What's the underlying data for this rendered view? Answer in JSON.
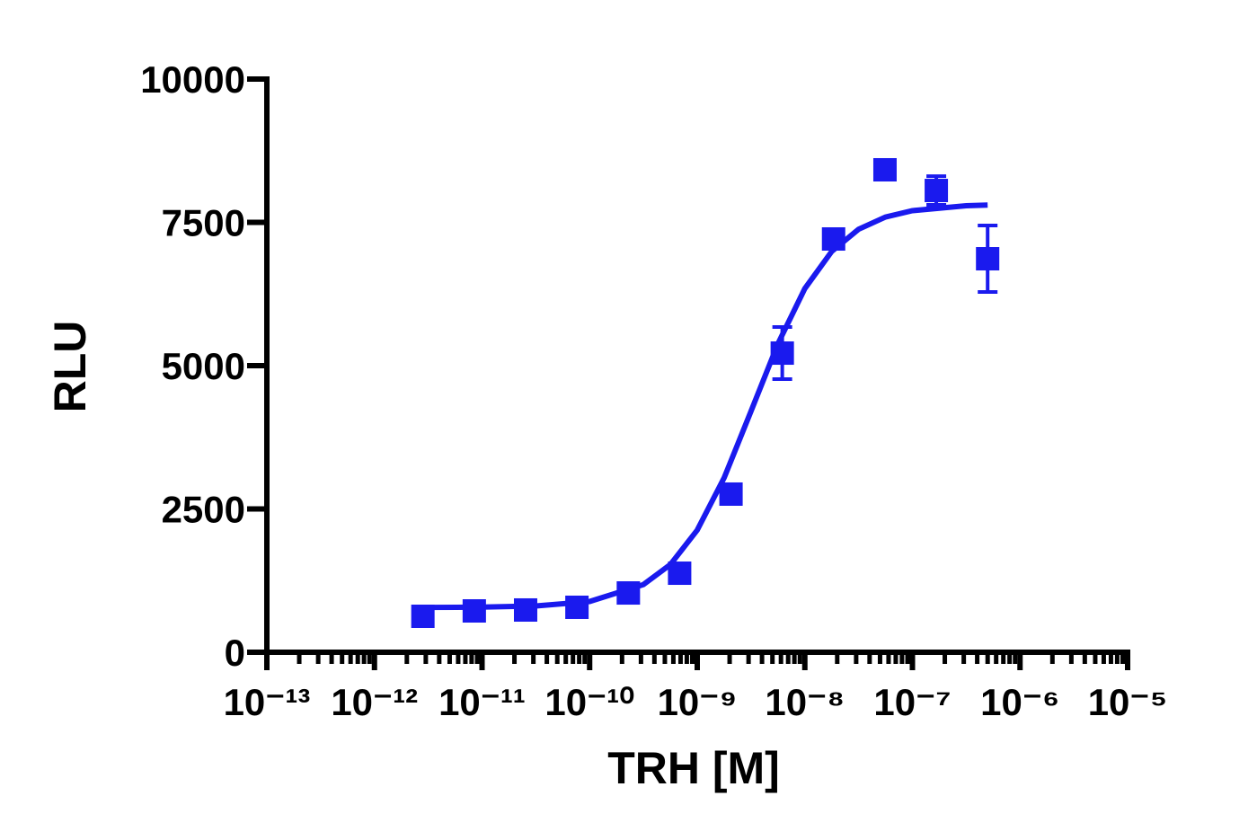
{
  "chart_data": {
    "type": "scatter",
    "xlabel": "TRH [M]",
    "ylabel": "RLU",
    "xscale": "log",
    "xlim": [
      1e-13,
      1e-05
    ],
    "xticks": [
      {
        "value": 1e-13,
        "label": "10⁻¹³"
      },
      {
        "value": 1e-12,
        "label": "10⁻¹²"
      },
      {
        "value": 1e-11,
        "label": "10⁻¹¹"
      },
      {
        "value": 1e-10,
        "label": "10⁻¹⁰"
      },
      {
        "value": 1e-09,
        "label": "10⁻⁹"
      },
      {
        "value": 1e-08,
        "label": "10⁻⁸"
      },
      {
        "value": 1e-07,
        "label": "10⁻⁷"
      },
      {
        "value": 1e-06,
        "label": "10⁻⁶"
      },
      {
        "value": 1e-05,
        "label": "10⁻⁵"
      }
    ],
    "ylim": [
      0,
      10000
    ],
    "yticks": [
      0,
      2500,
      5000,
      7500,
      10000
    ],
    "color": "#1a1aee",
    "x": [
      2.82e-12,
      8.47e-12,
      2.54e-11,
      7.62e-11,
      2.29e-10,
      6.86e-10,
      2.06e-09,
      6.17e-09,
      1.85e-08,
      5.56e-08,
      1.667e-07,
      5e-07
    ],
    "values": [
      627,
      721,
      737,
      784,
      1034,
      1379,
      2759,
      5219,
      7210,
      8417,
      8056,
      6865
    ],
    "errors": [
      60,
      60,
      60,
      60,
      80,
      80,
      150,
      455,
      100,
      150,
      250,
      580
    ],
    "fit": {
      "x": [
        2.82e-12,
        1e-11,
        3.16e-11,
        1e-10,
        3.16e-10,
        5.62e-10,
        1e-09,
        1.78e-09,
        3.16e-09,
        5.62e-09,
        1e-08,
        1.78e-08,
        3.16e-08,
        5.62e-08,
        1e-07,
        3.16e-07,
        5e-07
      ],
      "values": [
        781,
        787,
        807,
        885,
        1180,
        1529,
        2131,
        3044,
        4204,
        5381,
        6345,
        6994,
        7380,
        7593,
        7704,
        7790,
        7802
      ]
    }
  }
}
